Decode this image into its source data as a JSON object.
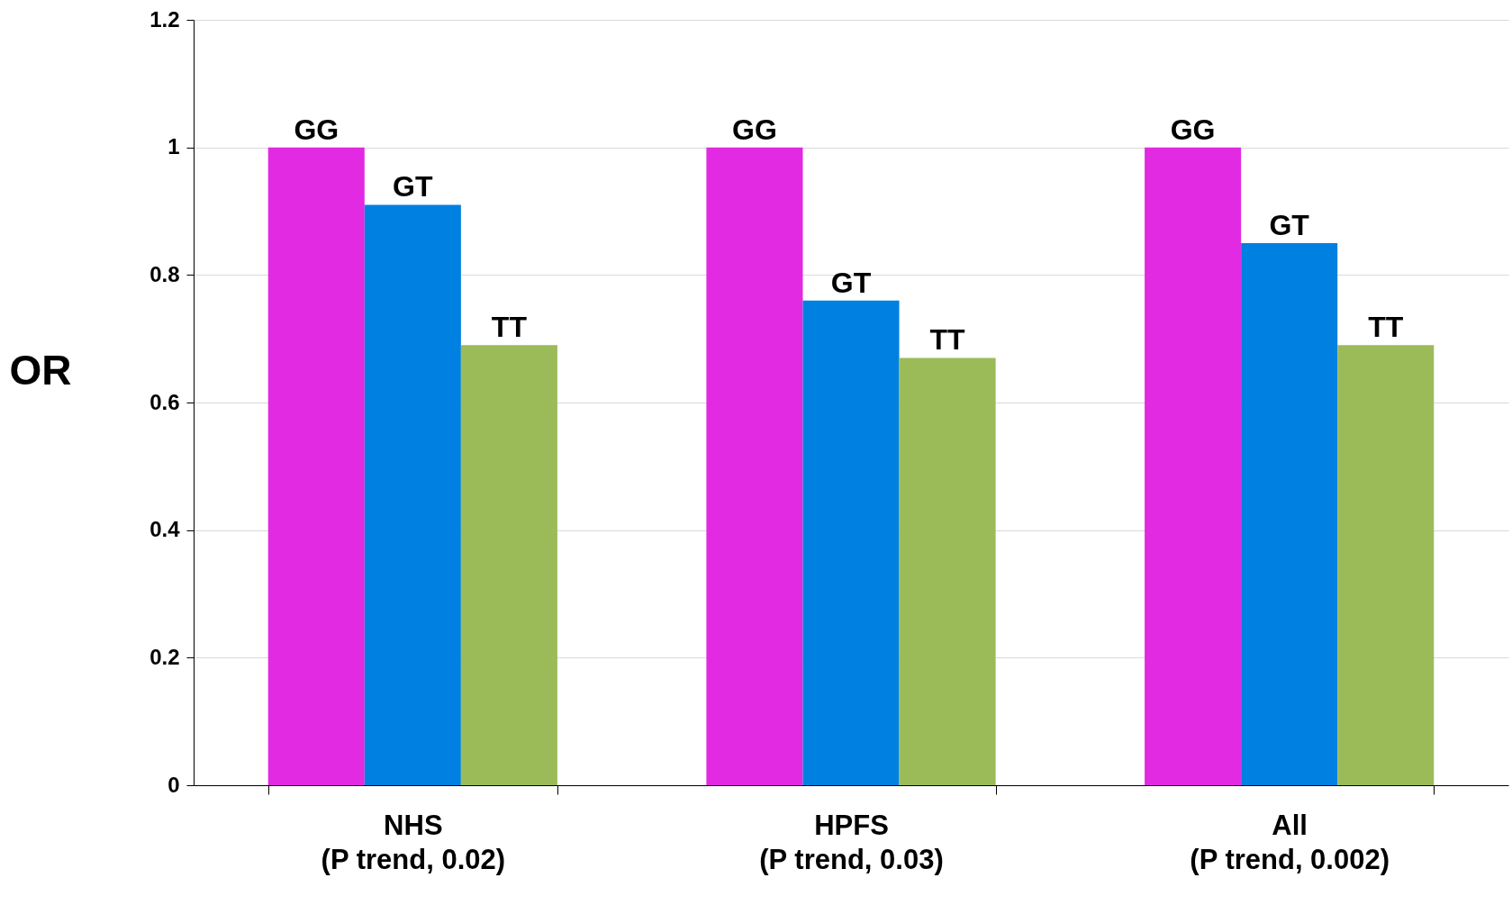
{
  "chart_data": {
    "type": "bar",
    "ylabel": "OR",
    "categories": [
      "NHS\n(P trend, 0.02)",
      "HPFS\n(P trend, 0.03)",
      "All\n(P trend, 0.002)"
    ],
    "series": [
      {
        "name": "GG",
        "color": "#e22ae2",
        "values": [
          1,
          1,
          1
        ]
      },
      {
        "name": "GT",
        "color": "#0080e0",
        "values": [
          0.91,
          0.76,
          0.85
        ]
      },
      {
        "name": "TT",
        "color": "#9bbb59",
        "values": [
          0.69,
          0.67,
          0.69
        ]
      }
    ],
    "ylim": [
      0,
      1.2
    ],
    "yticks": [
      0,
      0.2,
      0.4,
      0.6,
      0.8,
      1,
      1.2
    ],
    "grid": "y",
    "legend": false
  }
}
